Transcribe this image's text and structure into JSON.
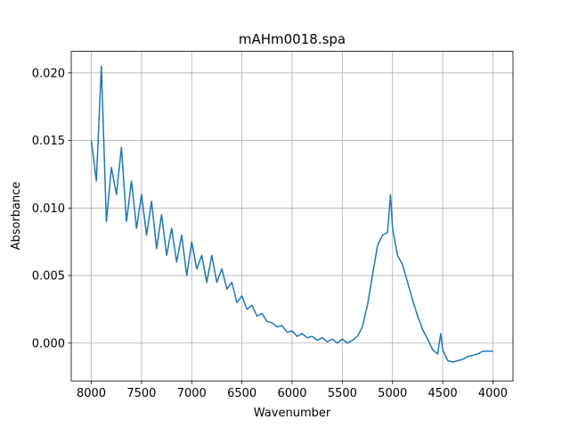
{
  "chart_data": {
    "type": "line",
    "title": "mAHm0018.spa",
    "xlabel": "Wavenumber",
    "ylabel": "Absorbance",
    "color": "#1f77b4",
    "grid": true,
    "x": [
      8000,
      7950,
      7900,
      7850,
      7800,
      7750,
      7700,
      7650,
      7600,
      7550,
      7500,
      7450,
      7400,
      7350,
      7300,
      7250,
      7200,
      7150,
      7100,
      7050,
      7000,
      6950,
      6900,
      6850,
      6800,
      6750,
      6700,
      6650,
      6600,
      6550,
      6500,
      6450,
      6400,
      6350,
      6300,
      6250,
      6200,
      6150,
      6100,
      6050,
      6000,
      5950,
      5900,
      5850,
      5800,
      5750,
      5700,
      5650,
      5600,
      5550,
      5500,
      5450,
      5400,
      5350,
      5300,
      5250,
      5200,
      5150,
      5100,
      5050,
      5020,
      5000,
      4950,
      4900,
      4850,
      4800,
      4750,
      4700,
      4650,
      4600,
      4550,
      4520,
      4500,
      4450,
      4400,
      4350,
      4300,
      4250,
      4200,
      4150,
      4100,
      4050,
      4000
    ],
    "values": [
      0.015,
      0.012,
      0.0205,
      0.009,
      0.013,
      0.011,
      0.0145,
      0.009,
      0.012,
      0.0085,
      0.011,
      0.008,
      0.0105,
      0.007,
      0.0095,
      0.0065,
      0.0085,
      0.006,
      0.008,
      0.005,
      0.0075,
      0.0055,
      0.0065,
      0.0045,
      0.0065,
      0.0045,
      0.0055,
      0.004,
      0.0045,
      0.003,
      0.0035,
      0.0025,
      0.0028,
      0.002,
      0.0022,
      0.0016,
      0.0015,
      0.0012,
      0.0013,
      0.0008,
      0.0009,
      0.0005,
      0.0007,
      0.0004,
      0.0005,
      0.0002,
      0.0004,
      0.0001,
      0.0003,
      0.0,
      0.0003,
      0.0,
      0.0002,
      0.0005,
      0.0012,
      0.0028,
      0.005,
      0.0072,
      0.008,
      0.0082,
      0.011,
      0.0085,
      0.0065,
      0.0058,
      0.0045,
      0.0032,
      0.002,
      0.001,
      0.0003,
      -0.0005,
      -0.0008,
      0.0007,
      -0.0005,
      -0.0013,
      -0.0014,
      -0.0013,
      -0.0012,
      -0.001,
      -0.0009,
      -0.0008,
      -0.0006,
      -0.0006,
      -0.0006
    ],
    "xlim": [
      8200,
      3800
    ],
    "xticks": [
      8000,
      7500,
      7000,
      6500,
      6000,
      5500,
      5000,
      4500,
      4000
    ],
    "ylim": [
      -0.0028,
      0.0216
    ],
    "yticks": [
      {
        "value": 0,
        "label": "0.000"
      },
      {
        "value": 0.005,
        "label": "0.005"
      },
      {
        "value": 0.01,
        "label": "0.010"
      },
      {
        "value": 0.015,
        "label": "0.015"
      },
      {
        "value": 0.02,
        "label": "0.020"
      }
    ]
  }
}
